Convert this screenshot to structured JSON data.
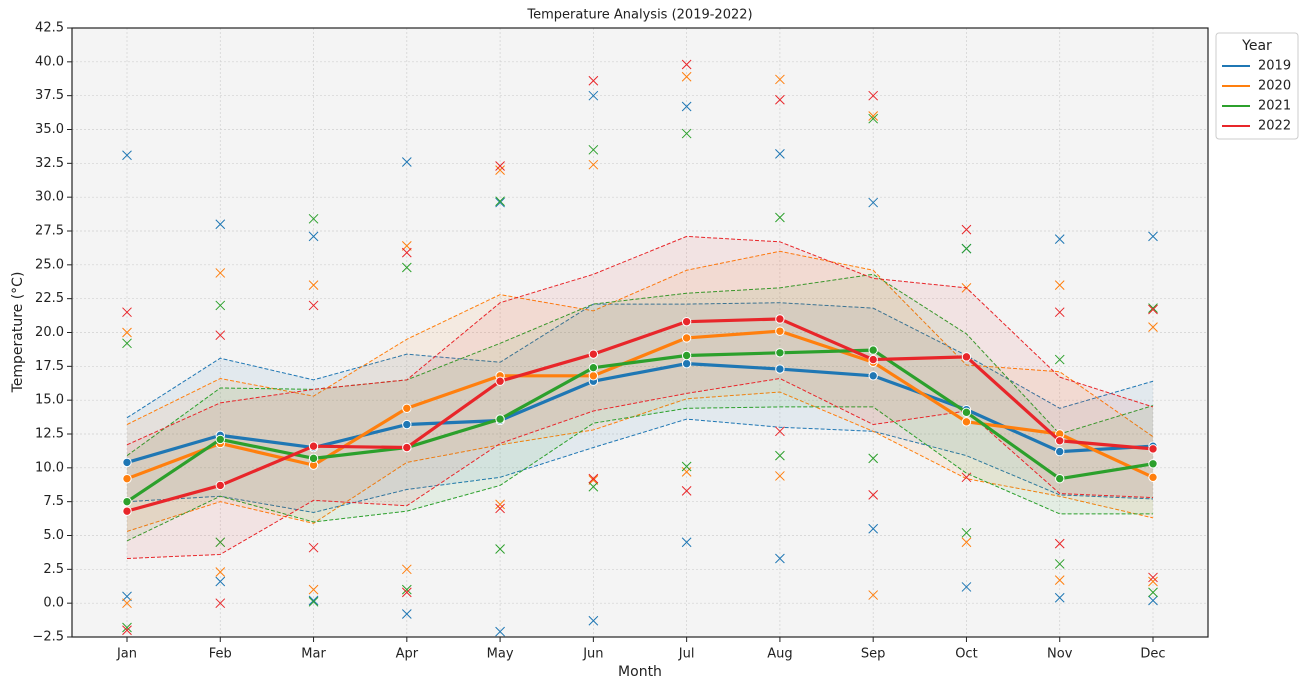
{
  "chart_data": {
    "type": "line",
    "title": "Temperature Analysis (2019-2022)",
    "x_label": "Month",
    "y_label": "Temperature (°C)",
    "legend_title": "Year",
    "legend": "upper right outside",
    "grid": true,
    "categories": [
      "Jan",
      "Feb",
      "Mar",
      "Apr",
      "May",
      "Jun",
      "Jul",
      "Aug",
      "Sep",
      "Oct",
      "Nov",
      "Dec"
    ],
    "ylim": [
      -2.5,
      42.5
    ],
    "yticks": [
      {
        "value": -2.5,
        "label": "−2.5"
      },
      {
        "value": 0,
        "label": "0.0"
      },
      {
        "value": 2.5,
        "label": "2.5"
      },
      {
        "value": 5,
        "label": "5.0"
      },
      {
        "value": 7.5,
        "label": "7.5"
      },
      {
        "value": 10,
        "label": "10.0"
      },
      {
        "value": 12.5,
        "label": "12.5"
      },
      {
        "value": 15,
        "label": "15.0"
      },
      {
        "value": 17.5,
        "label": "17.5"
      },
      {
        "value": 20,
        "label": "20.0"
      },
      {
        "value": 22.5,
        "label": "22.5"
      },
      {
        "value": 25,
        "label": "25.0"
      },
      {
        "value": 27.5,
        "label": "27.5"
      },
      {
        "value": 30,
        "label": "30.0"
      },
      {
        "value": 32.5,
        "label": "32.5"
      },
      {
        "value": 35,
        "label": "35.0"
      },
      {
        "value": 37.5,
        "label": "37.5"
      },
      {
        "value": 40,
        "label": "40.0"
      },
      {
        "value": 42.5,
        "label": "42.5"
      }
    ],
    "series": [
      {
        "name": "2019",
        "color": "#1f77b4",
        "values": [
          10.4,
          12.4,
          11.5,
          13.2,
          13.5,
          16.4,
          17.7,
          17.3,
          16.8,
          14.3,
          11.2,
          11.6
        ],
        "upper": [
          13.7,
          18.1,
          16.5,
          18.4,
          17.8,
          22.1,
          22.1,
          22.2,
          21.8,
          18.3,
          14.4,
          16.4
        ],
        "lower": [
          7.5,
          7.9,
          6.7,
          8.4,
          9.3,
          11.5,
          13.6,
          13.0,
          12.7,
          10.9,
          8.0,
          7.7
        ],
        "max_values": [
          33.1,
          28.0,
          27.1,
          32.6,
          29.6,
          37.5,
          36.7,
          33.2,
          29.6,
          26.2,
          26.9,
          27.1
        ],
        "min_values": [
          0.5,
          1.6,
          0.2,
          -0.8,
          -2.1,
          -1.3,
          4.5,
          3.3,
          5.5,
          1.2,
          0.4,
          0.2
        ]
      },
      {
        "name": "2020",
        "color": "#ff7f0e",
        "values": [
          9.2,
          11.8,
          10.2,
          14.4,
          16.8,
          16.8,
          19.6,
          20.1,
          17.8,
          13.4,
          12.5,
          9.3
        ],
        "upper": [
          13.2,
          16.6,
          15.3,
          19.5,
          22.8,
          21.6,
          24.6,
          26.0,
          24.6,
          17.6,
          17.1,
          12.3
        ],
        "lower": [
          5.3,
          7.5,
          5.9,
          10.4,
          11.7,
          12.8,
          15.1,
          15.6,
          12.7,
          9.2,
          7.9,
          6.3
        ],
        "max_values": [
          20.0,
          24.4,
          23.5,
          26.4,
          32.0,
          32.4,
          38.9,
          38.7,
          36.0,
          23.3,
          23.5,
          20.4
        ],
        "min_values": [
          0.0,
          2.3,
          1.0,
          2.5,
          7.3,
          9.1,
          9.7,
          9.4,
          0.6,
          4.5,
          1.7,
          1.6
        ]
      },
      {
        "name": "2021",
        "color": "#2ca02c",
        "values": [
          7.5,
          12.1,
          10.7,
          11.5,
          13.6,
          17.4,
          18.3,
          18.5,
          18.7,
          14.1,
          9.2,
          10.3
        ],
        "upper": [
          10.9,
          15.9,
          15.8,
          16.5,
          19.2,
          22.1,
          22.9,
          23.3,
          24.3,
          19.9,
          12.5,
          14.6
        ],
        "lower": [
          4.6,
          7.9,
          6.0,
          6.8,
          8.7,
          13.3,
          14.4,
          14.5,
          14.5,
          9.6,
          6.6,
          6.6
        ],
        "max_values": [
          19.2,
          22.0,
          28.4,
          24.8,
          29.7,
          33.5,
          34.7,
          28.5,
          35.8,
          26.2,
          18.0,
          21.8
        ],
        "min_values": [
          -1.8,
          4.5,
          0.1,
          1.0,
          4.0,
          8.6,
          10.1,
          10.9,
          10.7,
          5.2,
          2.9,
          0.8
        ]
      },
      {
        "name": "2022",
        "color": "#e8262a",
        "values": [
          6.8,
          8.7,
          11.6,
          11.5,
          16.4,
          18.4,
          20.8,
          21.0,
          18.0,
          18.2,
          12.0,
          11.4
        ],
        "upper": [
          11.7,
          14.8,
          15.8,
          16.5,
          22.2,
          24.3,
          27.1,
          26.7,
          24.0,
          23.3,
          16.7,
          14.5
        ],
        "lower": [
          3.3,
          3.6,
          7.6,
          7.2,
          11.8,
          14.2,
          15.5,
          16.6,
          13.2,
          14.2,
          8.1,
          7.8
        ],
        "max_values": [
          21.5,
          19.8,
          22.0,
          25.9,
          32.3,
          38.6,
          39.8,
          37.2,
          37.5,
          27.6,
          21.5,
          21.7
        ],
        "min_values": [
          -2.0,
          0.0,
          4.1,
          0.8,
          7.0,
          9.2,
          8.3,
          12.7,
          8.0,
          9.3,
          4.4,
          1.9
        ]
      }
    ]
  }
}
